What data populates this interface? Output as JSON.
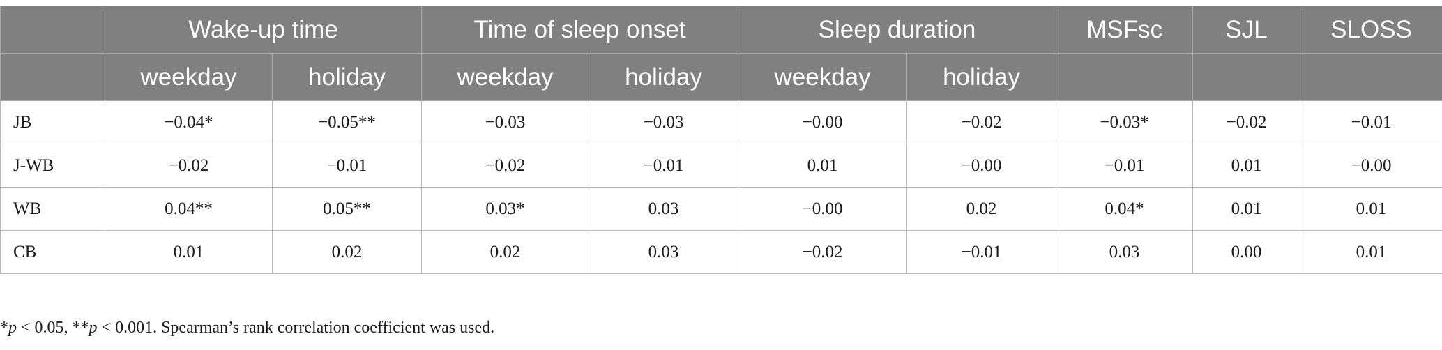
{
  "table": {
    "group_headers": [
      {
        "label": "",
        "span": 1
      },
      {
        "label": "Wake-up time",
        "span": 2
      },
      {
        "label": "Time of sleep onset",
        "span": 2
      },
      {
        "label": "Sleep duration",
        "span": 2
      },
      {
        "label": "MSFsc",
        "span": 1
      },
      {
        "label": "SJL",
        "span": 1
      },
      {
        "label": "SLOSS",
        "span": 1
      }
    ],
    "sub_headers": [
      "",
      "weekday",
      "holiday",
      "weekday",
      "holiday",
      "weekday",
      "holiday",
      "",
      "",
      ""
    ],
    "rows": [
      {
        "label": "JB",
        "values": [
          "−0.04*",
          "−0.05**",
          "−0.03",
          "−0.03",
          "−0.00",
          "−0.02",
          "−0.03*",
          "−0.02",
          "−0.01"
        ]
      },
      {
        "label": "J-WB",
        "values": [
          "−0.02",
          "−0.01",
          "−0.02",
          "−0.01",
          "0.01",
          "−0.00",
          "−0.01",
          "0.01",
          "−0.00"
        ]
      },
      {
        "label": "WB",
        "values": [
          "0.04**",
          "0.05**",
          "0.03*",
          "0.03",
          "−0.00",
          "0.02",
          "0.04*",
          "0.01",
          "0.01"
        ]
      },
      {
        "label": "CB",
        "values": [
          "0.01",
          "0.02",
          "0.02",
          "0.03",
          "−0.02",
          "−0.01",
          "0.03",
          "0.00",
          "0.01"
        ]
      }
    ]
  },
  "footnote": {
    "p": "p",
    "sig1": " < 0.05, ",
    "sig2": " < 0.001. Spearman’s rank correlation coefficient was used.",
    "star1": "*",
    "star2": "**"
  }
}
